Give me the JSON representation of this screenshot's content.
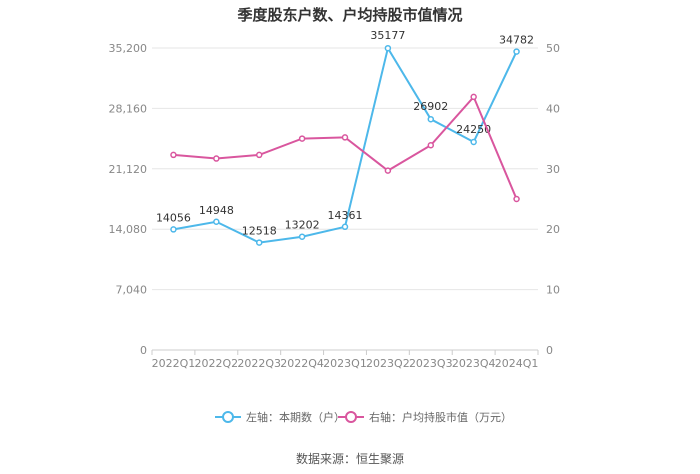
{
  "chart_data": {
    "type": "line",
    "title": "季度股东户数、户均持股市值情况",
    "categories": [
      "2022Q1",
      "2022Q2",
      "2022Q3",
      "2022Q4",
      "2023Q1",
      "2023Q2",
      "2023Q3",
      "2023Q4",
      "2024Q1"
    ],
    "series": [
      {
        "name": "左轴：本期数（户）",
        "axis": "left",
        "color": "#4db8ea",
        "values": [
          14056,
          14948,
          12518,
          13202,
          14361,
          35177,
          26902,
          24250,
          34782
        ],
        "labels": [
          "14056",
          "14948",
          "12518",
          "13202",
          "14361",
          "35177",
          "26902",
          "24250",
          "34782"
        ]
      },
      {
        "name": "右轴：户均持股市值（万元）",
        "axis": "right",
        "color": "#d9569e",
        "values": [
          32.3,
          31.7,
          32.3,
          35.0,
          35.2,
          29.7,
          33.9,
          41.9,
          25.0
        ]
      }
    ],
    "left_axis": {
      "min": 0,
      "max": 35200,
      "ticks": [
        "0",
        "7,040",
        "14,080",
        "21,120",
        "28,160",
        "35,200"
      ]
    },
    "right_axis": {
      "min": 0,
      "max": 50,
      "ticks": [
        "0",
        "10",
        "20",
        "30",
        "40",
        "50"
      ]
    },
    "grid": true,
    "legend_position": "bottom"
  },
  "source": "数据来源：恒生聚源"
}
